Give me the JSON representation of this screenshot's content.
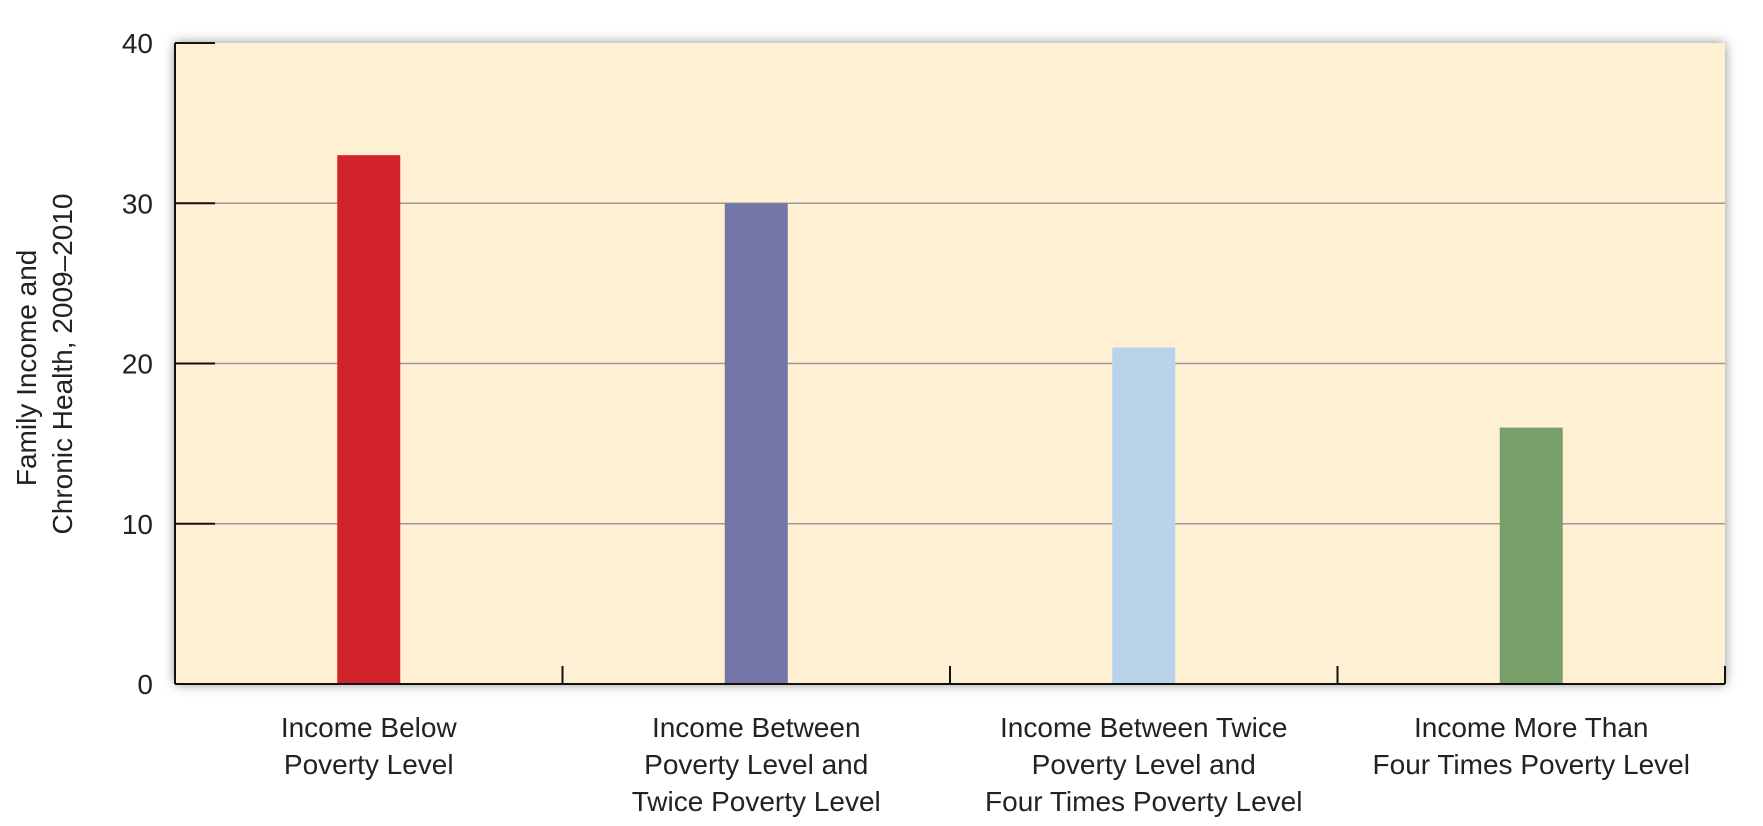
{
  "chart_data": {
    "type": "bar",
    "title": "",
    "ylabel_lines": [
      "Family Income and",
      "Chronic Health, 2009–2010"
    ],
    "xlabel": "",
    "categories": [
      [
        "Income Below",
        "Poverty Level"
      ],
      [
        "Income Between",
        "Poverty Level and",
        "Twice Poverty Level"
      ],
      [
        "Income Between Twice",
        "Poverty Level and",
        "Four Times Poverty Level"
      ],
      [
        "Income More Than",
        "Four Times Poverty Level"
      ]
    ],
    "values": [
      33,
      30,
      21,
      16
    ],
    "colors": [
      "#d2232a",
      "#7476a8",
      "#b7d4ea",
      "#78a06a"
    ],
    "ylim": [
      0,
      40
    ],
    "yticks": [
      0,
      10,
      20,
      30,
      40
    ],
    "grid": true,
    "plot_background": "#fff0d3"
  }
}
